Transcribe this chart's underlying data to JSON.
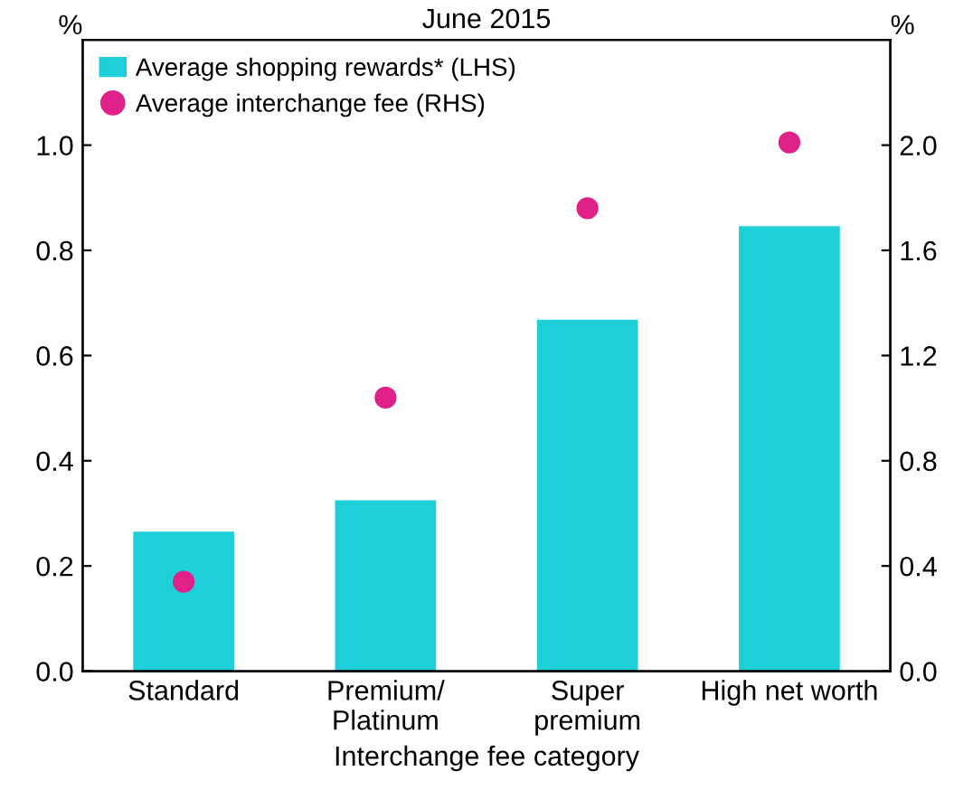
{
  "chart_data": {
    "type": "bar",
    "title": "June 2015",
    "xlabel": "Interchange fee category",
    "ylabel": "%",
    "y2label": "%",
    "categories": [
      "Standard",
      "Premium/\nPlatinum",
      "Super\npremium",
      "High net worth"
    ],
    "series": [
      {
        "name": "Average shopping rewards* (LHS)",
        "color": "#1ccfd9",
        "values": [
          0.265,
          0.325,
          0.668,
          0.846
        ]
      },
      {
        "name": "Average interchange fee (RHS)",
        "type": "scatter",
        "axis": "y2",
        "color": "#e0218a",
        "marker": "circle",
        "values": [
          0.34,
          1.04,
          1.76,
          2.01
        ]
      }
    ],
    "ylim": [
      0,
      1.2
    ],
    "yticks": [
      {
        "value": 0,
        "label": "0.0"
      },
      0.2,
      0.4,
      0.6,
      0.8,
      {
        "value": 1,
        "label": "1.0"
      }
    ],
    "y2lim": [
      0,
      2.4
    ],
    "y2ticks": [
      {
        "value": 0,
        "label": "0.0"
      },
      0.4,
      0.8,
      1.2,
      1.6,
      {
        "value": 2,
        "label": "2.0"
      }
    ],
    "legend": "top left",
    "grid": false
  }
}
